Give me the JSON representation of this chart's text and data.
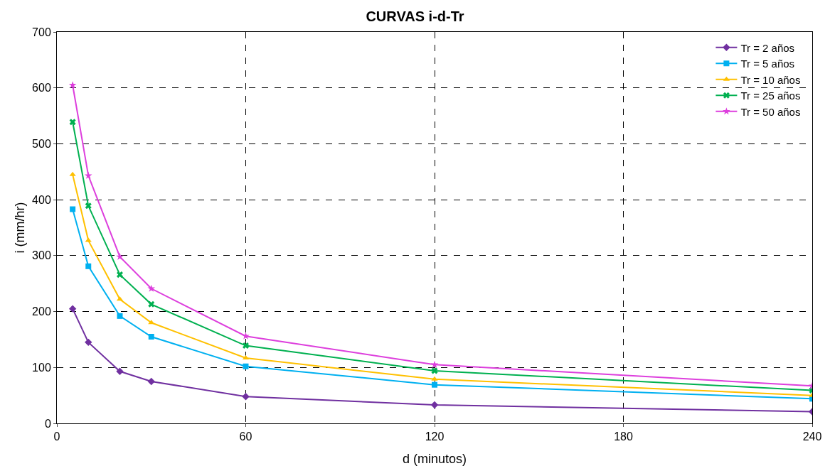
{
  "chart_data": {
    "type": "line",
    "title": "CURVAS i-d-Tr",
    "xlabel": "d (minutos)",
    "ylabel": "i (mm/hr)",
    "x": [
      5,
      10,
      20,
      30,
      60,
      120,
      240
    ],
    "series": [
      {
        "name": "Tr = 2 años",
        "color": "#7030a0",
        "marker": "diamond",
        "values": [
          205,
          145,
          93,
          75,
          48,
          33,
          21
        ]
      },
      {
        "name": "Tr = 5 años",
        "color": "#00b0f0",
        "marker": "square",
        "values": [
          383,
          281,
          192,
          155,
          102,
          69,
          44
        ]
      },
      {
        "name": "Tr = 10 años",
        "color": "#ffc000",
        "marker": "triangle",
        "values": [
          445,
          327,
          222,
          180,
          117,
          79,
          50
        ]
      },
      {
        "name": "Tr = 25 años",
        "color": "#00b050",
        "marker": "cross",
        "values": [
          539,
          389,
          266,
          213,
          139,
          94,
          59
        ]
      },
      {
        "name": "Tr = 50 años",
        "color": "#dd3fdd",
        "marker": "star",
        "values": [
          605,
          443,
          298,
          241,
          156,
          105,
          67
        ]
      }
    ],
    "xlim": [
      0,
      240
    ],
    "xticks": [
      0,
      60,
      120,
      180,
      240
    ],
    "ylim": [
      0,
      700
    ],
    "yticks": [
      0,
      100,
      200,
      300,
      400,
      500,
      600,
      700
    ],
    "grid": true,
    "legend": "top right",
    "line_style": "solid"
  }
}
